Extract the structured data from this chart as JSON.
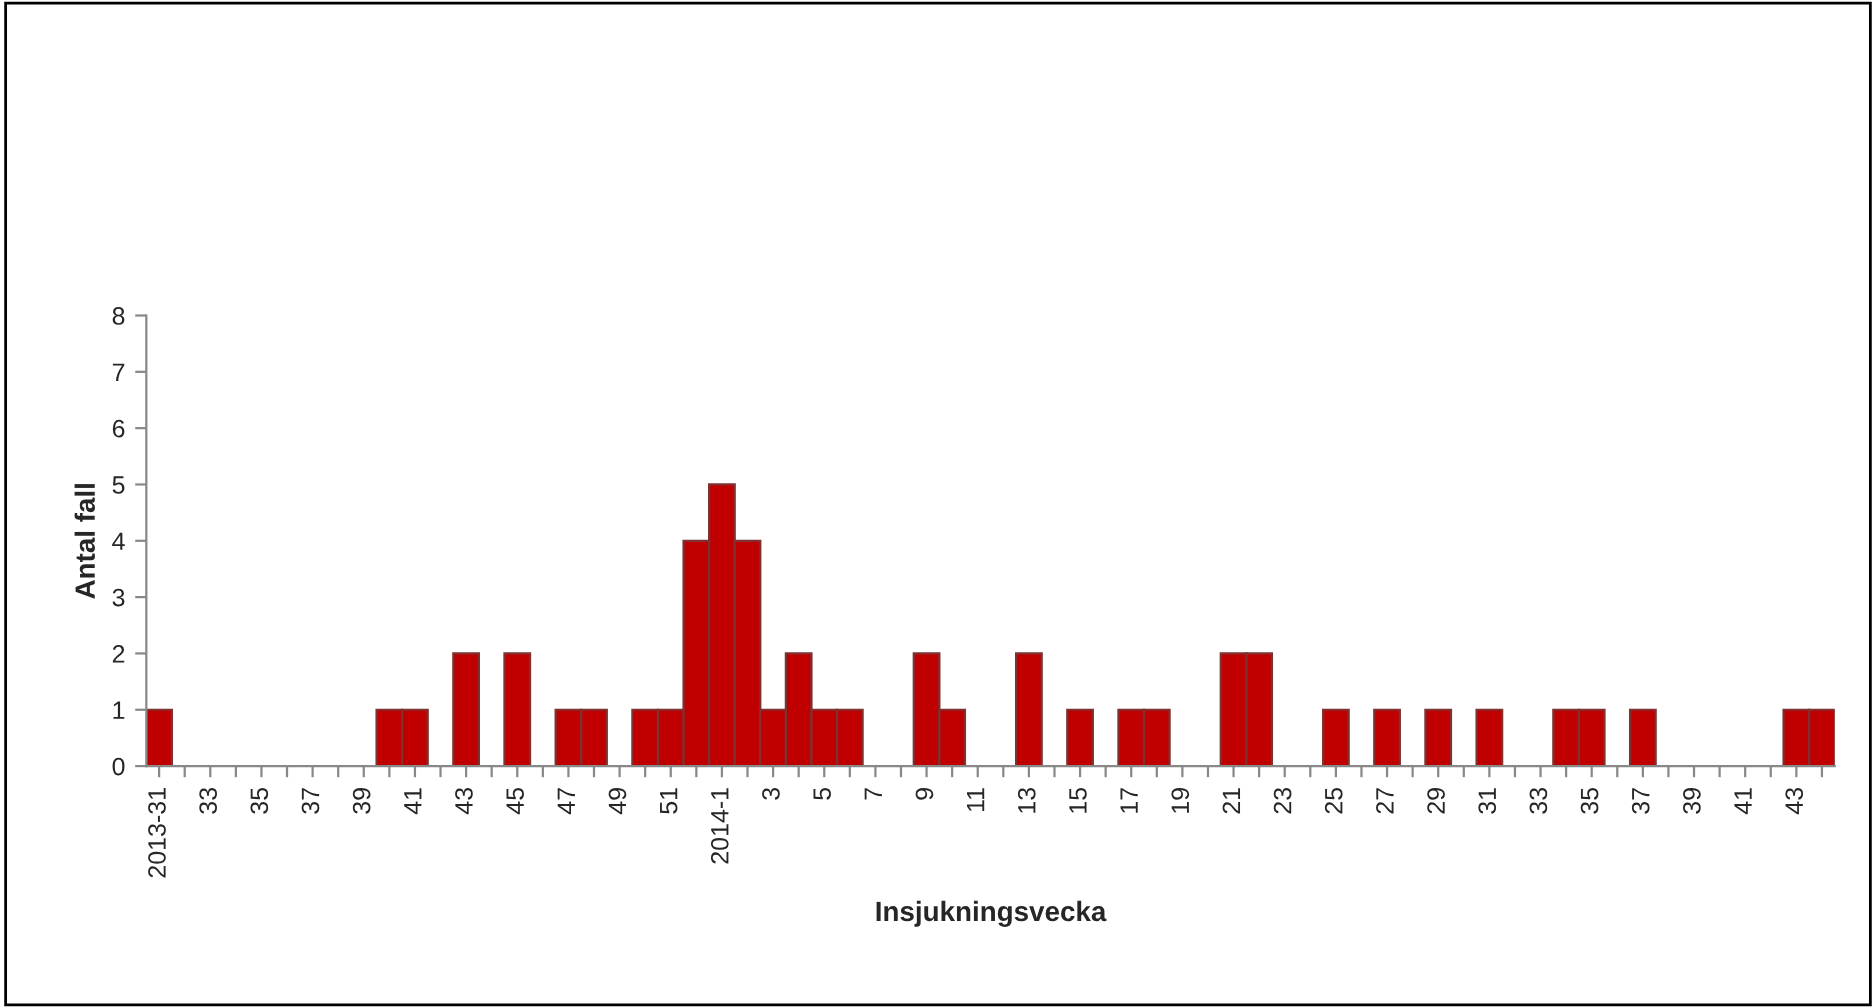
{
  "chart_data": {
    "type": "bar",
    "xlabel": "Insjukningsvecka",
    "ylabel": "Antal fall",
    "categories": [
      "2013-31",
      null,
      "33",
      null,
      "35",
      null,
      "37",
      null,
      "39",
      null,
      "41",
      null,
      "43",
      null,
      "45",
      null,
      "47",
      null,
      "49",
      null,
      "51",
      null,
      "2014-1",
      null,
      "3",
      null,
      "5",
      null,
      "7",
      null,
      "9",
      null,
      "11",
      null,
      "13",
      null,
      "15",
      null,
      "17",
      null,
      "19",
      null,
      "21",
      null,
      "23",
      null,
      "25",
      null,
      "27",
      null,
      "29",
      null,
      "31",
      null,
      "33",
      null,
      "35",
      null,
      "37",
      null,
      "39",
      null,
      "41",
      null,
      "43",
      null
    ],
    "values": [
      1,
      0,
      0,
      0,
      0,
      0,
      0,
      0,
      0,
      1,
      1,
      0,
      2,
      0,
      2,
      0,
      1,
      1,
      0,
      1,
      1,
      4,
      5,
      4,
      1,
      2,
      1,
      1,
      0,
      0,
      2,
      1,
      0,
      0,
      2,
      0,
      1,
      0,
      1,
      1,
      0,
      0,
      2,
      2,
      0,
      0,
      1,
      0,
      1,
      0,
      1,
      0,
      1,
      0,
      0,
      1,
      1,
      0,
      1,
      0,
      0,
      0,
      0,
      0,
      1,
      1
    ],
    "color": "#c00000",
    "ylim": [
      0,
      8
    ],
    "yticks": [
      0,
      1,
      2,
      3,
      4,
      5,
      6,
      7,
      8
    ],
    "grid": false,
    "legend": false
  }
}
